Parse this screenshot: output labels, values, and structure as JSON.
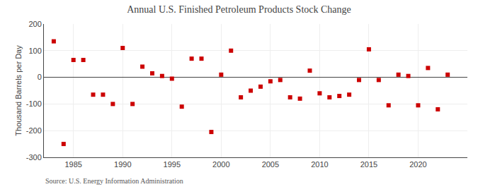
{
  "chart_data": {
    "type": "scatter",
    "title": "Annual U.S. Finished Petroleum Products Stock Change",
    "ylabel": "Thousand Barrels per Day",
    "annotations": [
      "Source: U.S. Energy Information Administration"
    ],
    "x": [
      1983,
      1984,
      1985,
      1986,
      1987,
      1988,
      1989,
      1990,
      1991,
      1992,
      1993,
      1994,
      1995,
      1996,
      1997,
      1998,
      1999,
      2000,
      2001,
      2002,
      2003,
      2004,
      2005,
      2006,
      2007,
      2008,
      2009,
      2010,
      2011,
      2012,
      2013,
      2014,
      2015,
      2016,
      2017,
      2018,
      2019,
      2020,
      2021,
      2022,
      2023
    ],
    "values": [
      135,
      -250,
      65,
      65,
      -65,
      -65,
      -100,
      110,
      -100,
      40,
      15,
      5,
      -5,
      -110,
      70,
      70,
      -205,
      10,
      100,
      -75,
      -50,
      -35,
      -15,
      -10,
      -75,
      -80,
      25,
      -60,
      -75,
      -70,
      -65,
      -10,
      105,
      -10,
      -105,
      10,
      5,
      -105,
      35,
      -120,
      10
    ],
    "color": "#cc0000",
    "marker": "square",
    "xlim": [
      1982,
      2025
    ],
    "ylim": [
      -300,
      200
    ],
    "xticks": [
      1985,
      1990,
      1995,
      2000,
      2005,
      2010,
      2015,
      2020
    ],
    "yticks": [
      -300,
      -200,
      -100,
      0,
      100,
      200
    ],
    "grid": true
  }
}
